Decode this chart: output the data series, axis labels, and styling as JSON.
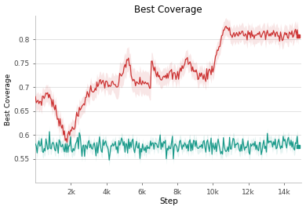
{
  "title": "Best Coverage",
  "xlabel": "Step",
  "ylabel": "Best Coverage",
  "ylim": [
    0.5,
    0.85
  ],
  "xlim": [
    0,
    15000
  ],
  "xticks": [
    2000,
    4000,
    6000,
    8000,
    10000,
    12000,
    14000
  ],
  "xtick_labels": [
    "2k",
    "4k",
    "6k",
    "8k",
    "10k",
    "12k",
    "14k"
  ],
  "yticks": [
    0.55,
    0.6,
    0.65,
    0.7,
    0.75,
    0.8
  ],
  "red_color": "#cc3333",
  "teal_color": "#1a9a8a",
  "red_fill_alpha": 0.12,
  "teal_fill_alpha": 0.12,
  "background_color": "#ffffff",
  "grid_color": "#dddddd",
  "figsize": [
    3.9,
    2.68
  ],
  "dpi": 100
}
